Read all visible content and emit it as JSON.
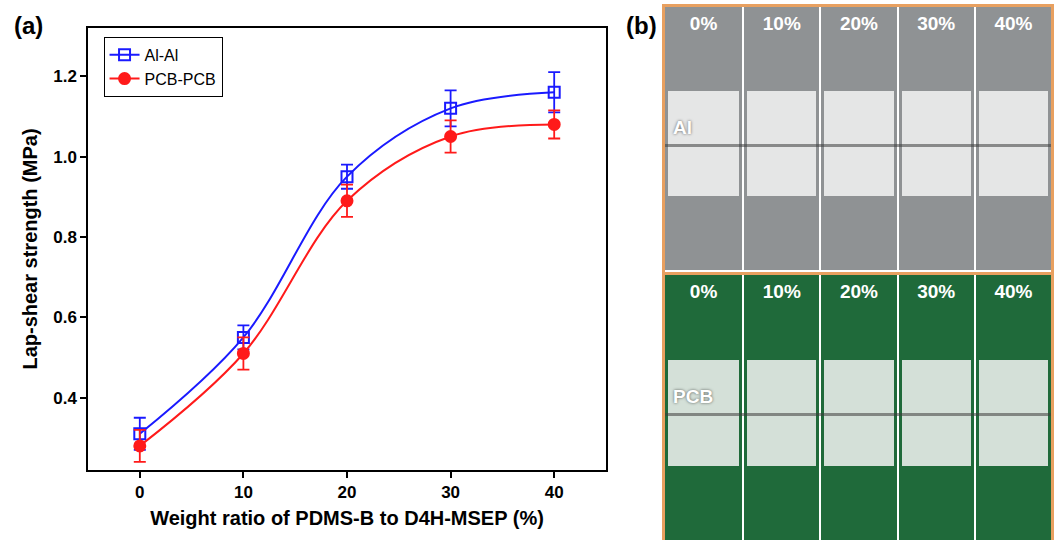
{
  "chart_data": {
    "type": "line",
    "xlabel": "Weight ratio of PDMS-B to D4H-MSEP (%)",
    "ylabel": "Lap-shear strength (MPa)",
    "x": [
      0,
      10,
      20,
      30,
      40
    ],
    "series": [
      {
        "name": "Al-Al",
        "color": "#1a1aff",
        "marker": "square-open",
        "line_style": "smooth",
        "values": [
          0.31,
          0.55,
          0.95,
          1.12,
          1.16
        ],
        "errors": [
          0.04,
          0.03,
          0.03,
          0.045,
          0.05
        ]
      },
      {
        "name": "PCB-PCB",
        "color": "#ff1a1a",
        "marker": "circle",
        "line_style": "smooth",
        "values": [
          0.28,
          0.51,
          0.89,
          1.05,
          1.08
        ],
        "errors": [
          0.04,
          0.04,
          0.04,
          0.04,
          0.035
        ]
      }
    ],
    "xlim": [
      -5,
      45
    ],
    "xticks": [
      0,
      10,
      20,
      30,
      40
    ],
    "ylim": [
      0.22,
      1.32
    ],
    "yticks": [
      0.4,
      0.6,
      0.8,
      {
        "value": 1.0,
        "label": "1.0"
      },
      1.2
    ],
    "grid": false,
    "legend": "upper left"
  },
  "panel_labels": [
    "(a)",
    "(b)"
  ],
  "photo_panel": {
    "columns": [
      "0%",
      "10%",
      "20%",
      "30%",
      "40%"
    ],
    "rows": [
      {
        "label": "Al",
        "color": "#8f9294"
      },
      {
        "label": "PCB",
        "color": "#1f6a3a"
      }
    ]
  }
}
